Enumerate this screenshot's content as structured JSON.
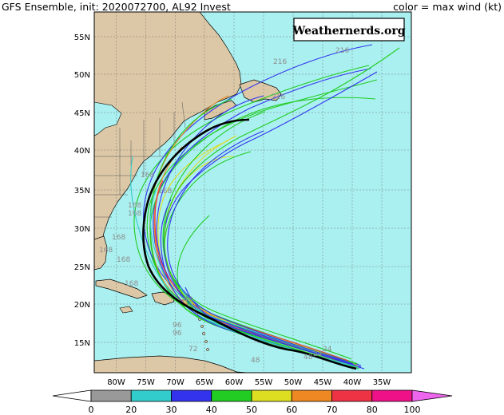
{
  "header": {
    "title": "GFS Ensemble, init: 2020072700, AL92 Invest",
    "legend_note": "color = max wind (kt)"
  },
  "watermark": "Weathernerds.org",
  "map": {
    "lon_labels": [
      "80W",
      "75W",
      "70W",
      "65W",
      "60W",
      "55W",
      "50W",
      "45W",
      "40W",
      "35W"
    ],
    "lat_labels": [
      "15N",
      "20N",
      "25N",
      "30N",
      "35N",
      "40N",
      "45N",
      "50N",
      "55N"
    ],
    "ocean_color": "#aaf0f0",
    "land_color": "#dcc8a6",
    "mean_track_color": "#000000",
    "hour_labels": [
      "216",
      "216",
      "216",
      "168",
      "168",
      "168",
      "168",
      "168",
      "168",
      "168",
      "168",
      "96",
      "96",
      "72",
      "48",
      "48",
      "48",
      "24",
      "24"
    ]
  },
  "colorbar": {
    "ticks": [
      "0",
      "20",
      "30",
      "40",
      "50",
      "60",
      "70",
      "80",
      "100"
    ],
    "colors": [
      "#999999",
      "#33cccc",
      "#3333ee",
      "#22cc22",
      "#dddd22",
      "#ee8822",
      "#ee3344",
      "#ee1188"
    ]
  }
}
